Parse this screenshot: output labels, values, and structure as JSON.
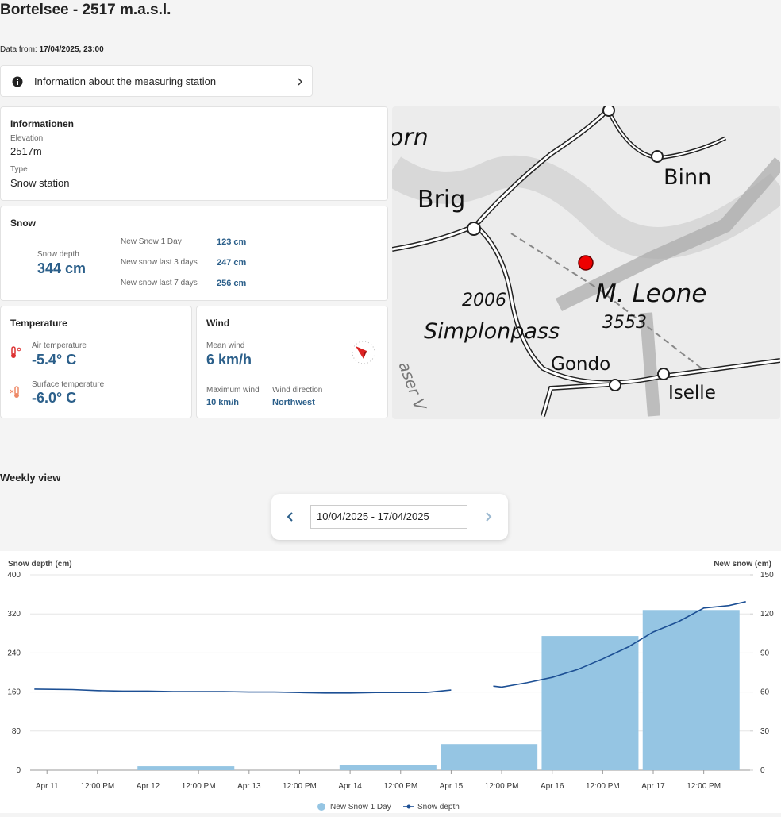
{
  "header": {
    "title": "Bortelsee - 2517 m.a.s.l."
  },
  "data_from": {
    "label": "Data from:",
    "value": "17/04/2025, 23:00"
  },
  "info_button": "Information about the measuring station",
  "informationen": {
    "title": "Informationen",
    "elevation_label": "Elevation",
    "elevation": "2517m",
    "type_label": "Type",
    "type": "Snow station"
  },
  "snow": {
    "title": "Snow",
    "depth_label": "Snow depth",
    "depth": "344 cm",
    "rows": [
      [
        "New Snow 1 Day",
        "123 cm"
      ],
      [
        "New snow last 3 days",
        "247 cm"
      ],
      [
        "New snow last 7 days",
        "256 cm"
      ]
    ]
  },
  "temperature": {
    "title": "Temperature",
    "air_label": "Air temperature",
    "air": "-5.4° C",
    "surface_label": "Surface temperature",
    "surface": "-6.0° C"
  },
  "wind": {
    "title": "Wind",
    "mean_label": "Mean wind",
    "mean": "6 km/h",
    "max_label": "Maximum wind",
    "max": "10 km/h",
    "direction_label": "Wind direction",
    "direction": "Northwest"
  },
  "map": {
    "labels": [
      "orn",
      "Brig",
      "Binn",
      "2006",
      "Simplonpass",
      "M. Leone",
      "3553",
      "Gondo",
      "Iselle",
      "aser V"
    ]
  },
  "weekly": {
    "title": "Weekly view",
    "date_range": "10/04/2025 - 17/04/2025"
  },
  "chart_data": {
    "type": "bar_line",
    "y_label": "Snow depth (cm)",
    "y2_label": "New snow (cm)",
    "xlim": [
      -4,
      167
    ],
    "xticks": [
      {
        "value": 0,
        "label": "Apr 11"
      },
      {
        "value": 12,
        "label": "12:00 PM"
      },
      {
        "value": 24,
        "label": "Apr 12"
      },
      {
        "value": 36,
        "label": "12:00 PM"
      },
      {
        "value": 48,
        "label": "Apr 13"
      },
      {
        "value": 60,
        "label": "12:00 PM"
      },
      {
        "value": 72,
        "label": "Apr 14"
      },
      {
        "value": 84,
        "label": "12:00 PM"
      },
      {
        "value": 96,
        "label": "Apr 15"
      },
      {
        "value": 108,
        "label": "12:00 PM"
      },
      {
        "value": 120,
        "label": "Apr 16"
      },
      {
        "value": 132,
        "label": "12:00 PM"
      },
      {
        "value": 144,
        "label": "Apr 17"
      },
      {
        "value": 156,
        "label": "12:00 PM"
      }
    ],
    "ylim": [
      0,
      400
    ],
    "yticks": [
      0,
      80,
      160,
      240,
      320,
      400
    ],
    "y2lim": [
      0,
      150
    ],
    "y2ticks": [
      0,
      30,
      60,
      90,
      120,
      150
    ],
    "grid": true,
    "legend": "bottom",
    "series": [
      {
        "name": "New Snow 1 Day",
        "type": "bar",
        "axis": "y2",
        "color": "#95c5e3",
        "x": [
          33,
          81,
          105,
          129,
          153
        ],
        "values": [
          3,
          4,
          20,
          103,
          123
        ]
      },
      {
        "name": "Snow depth",
        "type": "line",
        "axis": "y",
        "color": "#1c4f94",
        "x": [
          -3,
          6,
          12,
          18,
          24,
          30,
          36,
          42,
          48,
          54,
          60,
          66,
          72,
          78,
          84,
          90,
          96,
          102,
          106,
          108,
          114,
          120,
          126,
          132,
          138,
          144,
          150,
          156,
          162,
          166
        ],
        "values": [
          166,
          165,
          163,
          162,
          162,
          161,
          161,
          161,
          160,
          160,
          159,
          158,
          158,
          159,
          159,
          159,
          164,
          null,
          172,
          170,
          179,
          190,
          206,
          228,
          252,
          283,
          304,
          332,
          337,
          345
        ]
      }
    ]
  }
}
